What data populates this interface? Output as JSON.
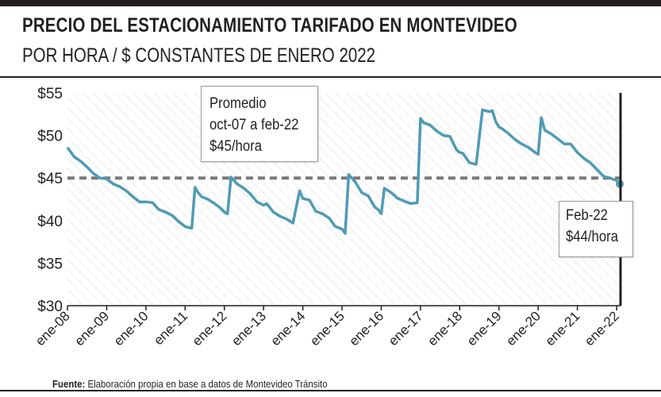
{
  "header": {
    "title": "PRECIO DEL ESTACIONAMIENTO TARIFADO EN MONTEVIDEO",
    "subtitle": "POR HORA / $ CONSTANTES DE ENERO 2022"
  },
  "annotations": {
    "average": {
      "line1": "Promedio",
      "line2": "oct-07 a feb-22",
      "line3": "$45/hora"
    },
    "last": {
      "line1": "Feb-22",
      "line2": "$44/hora"
    }
  },
  "footer": {
    "source_label": "Fuente:",
    "source_text": " Elaboración propia en base a datos de Montevideo Tránsito"
  },
  "colors": {
    "line": "#4f9bb5",
    "average_line": "#7a7a7a",
    "hatch": "#d9d9d9",
    "frame": "#231f20"
  },
  "chart_data": {
    "type": "line",
    "title": "PRECIO DEL ESTACIONAMIENTO TARIFADO EN MONTEVIDEO",
    "subtitle": "POR HORA / $ CONSTANTES DE ENERO 2022",
    "xlabel": "",
    "ylabel": "",
    "ylim": [
      30,
      55
    ],
    "yticks": [
      30,
      35,
      40,
      45,
      50,
      55
    ],
    "ytick_labels": [
      "$30",
      "$35",
      "$40",
      "$45",
      "$50",
      "$55"
    ],
    "xlim": [
      2008.0,
      2022.1
    ],
    "xticks": [
      2008,
      2009,
      2010,
      2011,
      2012,
      2013,
      2014,
      2015,
      2016,
      2017,
      2018,
      2019,
      2020,
      2021,
      2022
    ],
    "xtick_labels": [
      "ene-08",
      "ene-09",
      "ene-10",
      "ene-11",
      "ene-12",
      "ene-13",
      "ene-14",
      "ene-15",
      "ene-16",
      "ene-17",
      "ene-18",
      "ene-19",
      "ene-20",
      "ene-21",
      "ene-22"
    ],
    "grid": false,
    "legend": "none",
    "average": 45,
    "series": [
      {
        "x": [
          2008.0,
          2008.17,
          2008.33,
          2008.5,
          2008.67,
          2008.83,
          2009.0,
          2009.17,
          2009.33,
          2009.5,
          2009.67,
          2009.83,
          2010.0,
          2010.17,
          2010.33,
          2010.5,
          2010.67,
          2010.83,
          2011.0,
          2011.08,
          2011.17,
          2011.25,
          2011.33,
          2011.42,
          2011.58,
          2011.75,
          2011.92,
          2012.0,
          2012.08,
          2012.17,
          2012.33,
          2012.5,
          2012.67,
          2012.83,
          2013.0,
          2013.08,
          2013.25,
          2013.42,
          2013.58,
          2013.75,
          2013.92,
          2014.0,
          2014.17,
          2014.33,
          2014.5,
          2014.67,
          2014.83,
          2015.0,
          2015.08,
          2015.17,
          2015.33,
          2015.5,
          2015.67,
          2015.83,
          2015.92,
          2016.0,
          2016.08,
          2016.25,
          2016.42,
          2016.58,
          2016.75,
          2016.92,
          2017.0,
          2017.08,
          2017.25,
          2017.42,
          2017.58,
          2017.75,
          2017.92,
          2018.0,
          2018.08,
          2018.25,
          2018.42,
          2018.58,
          2018.75,
          2018.83,
          2018.92,
          2019.0,
          2019.08,
          2019.25,
          2019.42,
          2019.58,
          2019.75,
          2019.92,
          2020.0,
          2020.08,
          2020.17,
          2020.33,
          2020.5,
          2020.67,
          2020.83,
          2021.0,
          2021.17,
          2021.33,
          2021.5,
          2021.67,
          2021.83,
          2022.0,
          2022.08
        ],
        "values": [
          48.6,
          47.5,
          47.0,
          46.3,
          45.5,
          45.0,
          44.9,
          44.3,
          44.0,
          43.5,
          42.8,
          42.2,
          42.2,
          42.1,
          41.3,
          41.0,
          40.6,
          39.9,
          39.3,
          39.2,
          39.1,
          43.9,
          43.3,
          42.8,
          42.5,
          42.0,
          41.4,
          41.0,
          40.8,
          45.1,
          44.3,
          43.8,
          43.1,
          42.2,
          41.8,
          42.0,
          41.0,
          40.5,
          40.2,
          39.7,
          43.5,
          42.6,
          42.4,
          41.1,
          40.8,
          40.3,
          39.3,
          39.0,
          38.5,
          45.4,
          44.6,
          43.3,
          42.9,
          41.6,
          41.3,
          40.8,
          43.8,
          43.3,
          42.6,
          42.3,
          42.0,
          42.1,
          52.0,
          51.5,
          51.2,
          50.5,
          50.0,
          49.9,
          48.3,
          48.0,
          47.9,
          46.8,
          46.6,
          53.0,
          52.8,
          52.9,
          51.6,
          51.0,
          50.8,
          50.2,
          49.5,
          49.0,
          48.6,
          48.0,
          47.8,
          52.1,
          50.6,
          50.2,
          49.6,
          49.0,
          49.0,
          48.0,
          47.3,
          46.8,
          46.0,
          45.2,
          45.0,
          44.7,
          44.3
        ]
      }
    ],
    "last_point": {
      "x": 2022.08,
      "y": 44.3
    }
  }
}
